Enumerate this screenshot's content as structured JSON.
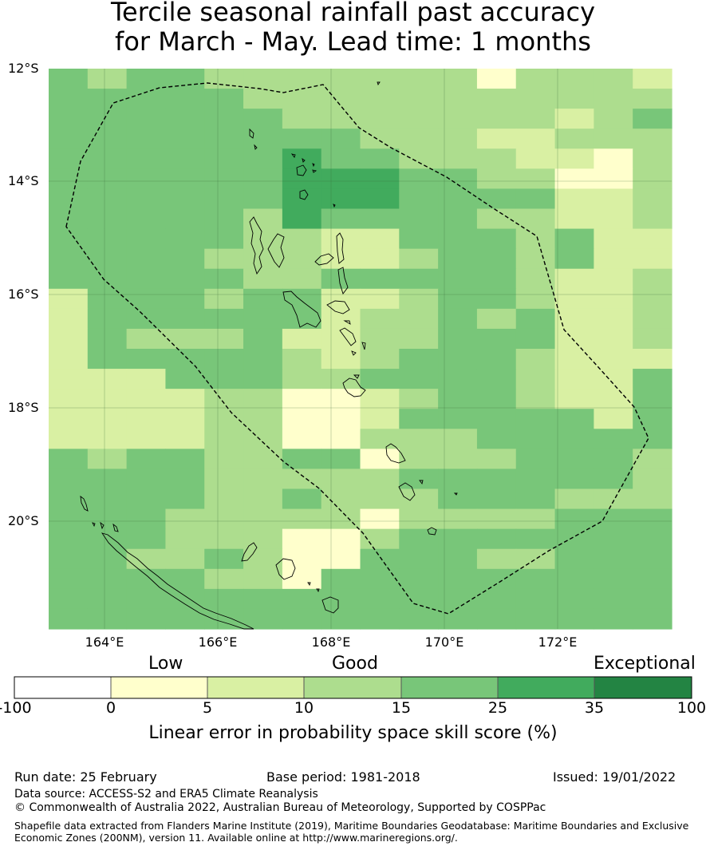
{
  "title": {
    "line1": "Tercile seasonal rainfall past accuracy",
    "line2": "for March - May. Lead time: 1 months"
  },
  "map": {
    "lat_labels": [
      "12°S",
      "14°S",
      "16°S",
      "18°S",
      "20°S"
    ],
    "lon_labels": [
      "164°E",
      "166°E",
      "168°E",
      "170°E",
      "172°E"
    ],
    "grid_colors": {
      "1": "#ffffcc",
      "2": "#d9f0a3",
      "3": "#addd8e",
      "4": "#78c679",
      "5": "#41ab5d"
    },
    "skill_grid": [
      "4344333333313332",
      "4444433333333333",
      "4444443333333234",
      "4444444433322333",
      "4444445443332213",
      "4444445554433113",
      "4444445554444223",
      "4444435444433223",
      "4444433224443422",
      "4444333223443422",
      "4444433444443223",
      "2444344223443223",
      "2444444233434223",
      "2433342233444223",
      "2444443234443222",
      "2224443344443224",
      "2222331123443224",
      "2222331124444424",
      "2222331133344444",
      "4344334413334443",
      "4444333334444443",
      "4444334333444333",
      "4443333313333444",
      "4443331134444444",
      "4433431144433444",
      "4444331444444444",
      "4444444444444444",
      "4444444444444444"
    ]
  },
  "legend": {
    "categories": [
      "Low",
      "Good",
      "Exceptional"
    ],
    "colors": [
      "#ffffff",
      "#ffffcc",
      "#d9f0a3",
      "#addd8e",
      "#78c679",
      "#41ab5d",
      "#238443"
    ],
    "ticks": [
      "-100",
      "0",
      "5",
      "10",
      "15",
      "25",
      "35",
      "100"
    ],
    "title": "Linear error in probability space skill score (%)"
  },
  "footer": {
    "run_date": "Run date: 25 February",
    "base_period": "Base period: 1981-2018",
    "issued": "Issued: 19/01/2022",
    "data_source": "Data source: ACCESS-S2 and ERA5 Climate Reanalysis",
    "copyright": "© Commonwealth of Australia 2022, Australian Bureau of Meteorology, Supported by COSPPac",
    "shapefile_line1": "Shapefile data extracted from Flanders Marine Institute (2019), Maritime Boundaries Geodatabase: Maritime Boundaries and Exclusive",
    "shapefile_line2": "Economic Zones (200NM), version 11. Available online at http://www.marineregions.org/."
  }
}
